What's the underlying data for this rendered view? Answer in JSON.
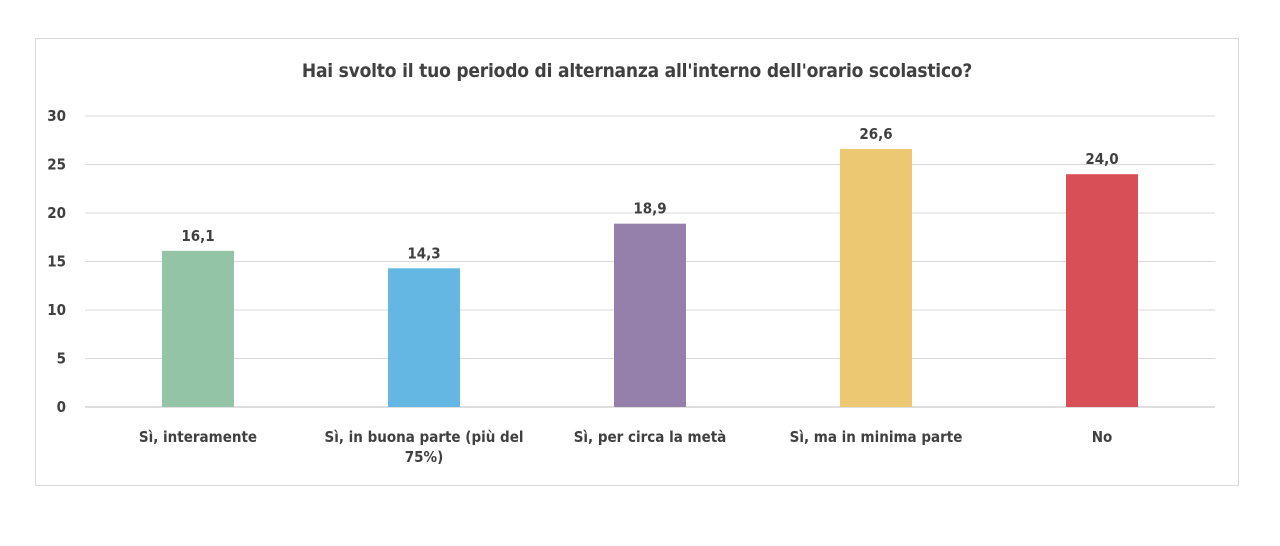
{
  "chart_data": {
    "type": "bar",
    "title": "Hai svolto il tuo periodo di alternanza all'interno dell'orario scolastico?",
    "categories": [
      "Sì, interamente",
      "Sì, in buona parte (più del 75%)",
      "Sì, per circa la metà",
      "Sì, ma in minima parte",
      "No"
    ],
    "values": [
      16.1,
      14.3,
      18.9,
      26.6,
      24.0
    ],
    "value_labels": [
      "16,1",
      "14,3",
      "18,9",
      "26,6",
      "24,0"
    ],
    "colors": [
      "#93c4a6",
      "#64b6e3",
      "#957fab",
      "#edc873",
      "#d94f57"
    ],
    "ylim": [
      0,
      30
    ],
    "yticks": [
      "0",
      "5",
      "10",
      "15",
      "20",
      "25",
      "30"
    ],
    "grid": true,
    "legend": "none"
  }
}
